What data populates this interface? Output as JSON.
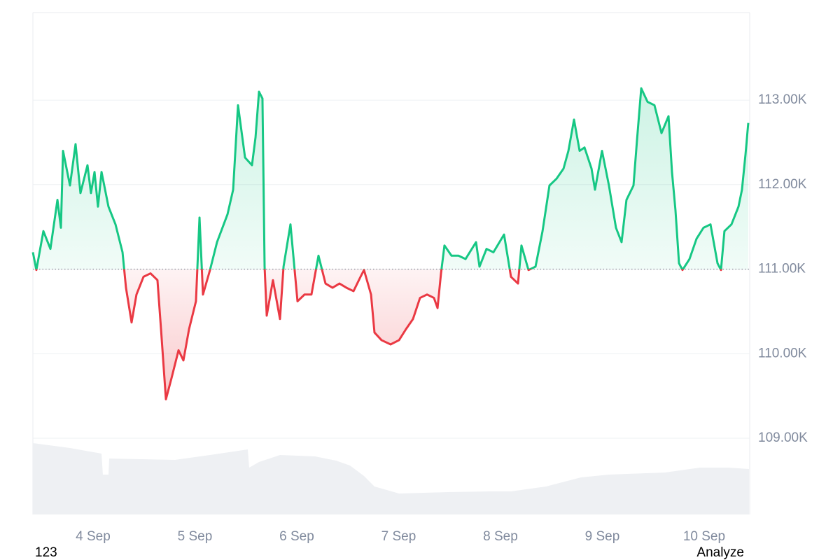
{
  "chart_data": {
    "type": "baseline",
    "baseline": 111,
    "xlim": [
      3.409,
      10.447
    ],
    "xticks": [
      {
        "value": 4,
        "label": "4 Sep"
      },
      {
        "value": 5,
        "label": "5 Sep"
      },
      {
        "value": 6,
        "label": "6 Sep"
      },
      {
        "value": 7,
        "label": "7 Sep"
      },
      {
        "value": 8,
        "label": "8 Sep"
      },
      {
        "value": 9,
        "label": "9 Sep"
      },
      {
        "value": 10,
        "label": "10 Sep"
      }
    ],
    "ylim": [
      108.097,
      114.036
    ],
    "yticks": [
      {
        "value": 109,
        "label": "109.00K"
      },
      {
        "value": 110,
        "label": "110.00K"
      },
      {
        "value": 111,
        "label": "111.00K"
      },
      {
        "value": 112,
        "label": "112.00K"
      },
      {
        "value": 113,
        "label": "113.00K"
      }
    ],
    "grid": true,
    "x": [
      3.409,
      3.443,
      3.512,
      3.581,
      3.65,
      3.684,
      3.705,
      3.773,
      3.828,
      3.876,
      3.945,
      3.979,
      4.014,
      4.048,
      4.083,
      4.151,
      4.22,
      4.289,
      4.323,
      4.378,
      4.426,
      4.495,
      4.564,
      4.632,
      4.667,
      4.715,
      4.77,
      4.839,
      4.887,
      4.942,
      5.01,
      5.045,
      5.079,
      5.148,
      5.217,
      5.32,
      5.375,
      5.423,
      5.492,
      5.56,
      5.595,
      5.629,
      5.663,
      5.684,
      5.705,
      5.766,
      5.835,
      5.87,
      5.938,
      6.007,
      6.076,
      6.144,
      6.213,
      6.282,
      6.351,
      6.419,
      6.488,
      6.557,
      6.626,
      6.66,
      6.729,
      6.763,
      6.832,
      6.921,
      7.004,
      7.072,
      7.141,
      7.21,
      7.279,
      7.347,
      7.382,
      7.416,
      7.45,
      7.519,
      7.588,
      7.657,
      7.76,
      7.794,
      7.863,
      7.931,
      8.035,
      8.103,
      8.172,
      8.206,
      8.275,
      8.344,
      8.413,
      8.481,
      8.55,
      8.619,
      8.667,
      8.722,
      8.777,
      8.825,
      8.894,
      8.928,
      8.997,
      9.065,
      9.134,
      9.189,
      9.237,
      9.306,
      9.34,
      9.382,
      9.444,
      9.512,
      9.581,
      9.65,
      9.684,
      9.718,
      9.753,
      9.787,
      9.856,
      9.925,
      9.993,
      10.062,
      10.131,
      10.165,
      10.199,
      10.268,
      10.337,
      10.371,
      10.406,
      10.433
    ],
    "series": [
      {
        "color": "#16c784",
        "down_color": "#ea3943",
        "values": [
          111.2,
          110.99,
          111.45,
          111.24,
          111.82,
          111.49,
          112.4,
          111.99,
          112.48,
          111.9,
          112.23,
          111.9,
          112.15,
          111.74,
          112.15,
          111.74,
          111.53,
          111.2,
          110.78,
          110.37,
          110.7,
          110.91,
          110.95,
          110.87,
          110.29,
          109.46,
          109.71,
          110.04,
          109.92,
          110.29,
          110.62,
          111.61,
          110.7,
          110.99,
          111.32,
          111.65,
          111.94,
          112.94,
          112.32,
          112.23,
          112.56,
          113.1,
          113.02,
          111.03,
          110.45,
          110.87,
          110.41,
          111.03,
          111.53,
          110.62,
          110.7,
          110.7,
          111.16,
          110.83,
          110.78,
          110.83,
          110.78,
          110.74,
          110.91,
          110.99,
          110.7,
          110.25,
          110.16,
          110.11,
          110.16,
          110.29,
          110.41,
          110.66,
          110.7,
          110.66,
          110.54,
          110.95,
          111.28,
          111.16,
          111.16,
          111.12,
          111.32,
          111.03,
          111.24,
          111.2,
          111.41,
          110.91,
          110.83,
          111.28,
          110.99,
          111.03,
          111.45,
          111.99,
          112.07,
          112.19,
          112.4,
          112.77,
          112.4,
          112.44,
          112.19,
          111.94,
          112.4,
          111.99,
          111.49,
          111.32,
          111.82,
          111.99,
          112.52,
          113.14,
          112.98,
          112.94,
          112.61,
          112.81,
          112.15,
          111.7,
          111.07,
          110.99,
          111.12,
          111.36,
          111.49,
          111.53,
          111.07,
          110.99,
          111.45,
          111.53,
          111.74,
          111.94,
          112.36,
          112.73
        ]
      }
    ],
    "volume": {
      "color": "#eef0f3",
      "axis": "y2",
      "x": [
        3.409,
        3.773,
        4.083,
        4.096,
        4.151,
        4.158,
        4.804,
        5.148,
        5.519,
        5.533,
        5.629,
        5.835,
        6.179,
        6.385,
        6.522,
        6.66,
        6.763,
        7.004,
        7.485,
        7.897,
        8.103,
        8.447,
        8.79,
        9.065,
        9.615,
        9.959,
        10.234,
        10.44
      ],
      "values": [
        93.6,
        87.2,
        79.8,
        52.3,
        52.3,
        73.4,
        71.6,
        78.0,
        85.3,
        61.5,
        68.8,
        78.0,
        76.1,
        70.6,
        64.2,
        50.5,
        36.7,
        27.5,
        29.4,
        30.3,
        30.3,
        36.7,
        48.6,
        52.3,
        55.0,
        61.5,
        61.5,
        59.6
      ]
    },
    "y2lim": [
      0,
      100
    ],
    "footer": {
      "left": "123",
      "right": "Analyze"
    }
  }
}
